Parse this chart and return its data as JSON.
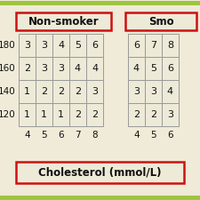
{
  "bg_color": "#f0ead8",
  "outer_border_color": "#9dc53a",
  "outer_border_lw": 3.5,
  "red_border": "#cc1111",
  "cell_bg": "#eeead8",
  "table_border_color": "#999999",
  "text_color": "#111111",
  "nonsmoker_label": "Non-smoker",
  "smoker_label": "Smo",
  "cholesterol_label": "Cholesterol (mmol/L)",
  "bp_rows": [
    180,
    160,
    140,
    120
  ],
  "chol_cols_ns": [
    4,
    5,
    6,
    7,
    8
  ],
  "chol_cols_s": [
    4,
    5,
    6
  ],
  "nonsmoker_data": [
    [
      3,
      3,
      4,
      5,
      6
    ],
    [
      2,
      3,
      3,
      4,
      4
    ],
    [
      1,
      2,
      2,
      2,
      3
    ],
    [
      1,
      1,
      1,
      2,
      2
    ]
  ],
  "smoker_data": [
    [
      6,
      7,
      8
    ],
    [
      4,
      5,
      6
    ],
    [
      3,
      3,
      4
    ],
    [
      2,
      2,
      3
    ]
  ],
  "fig_w": 2.25,
  "fig_h": 2.25,
  "dpi": 100
}
